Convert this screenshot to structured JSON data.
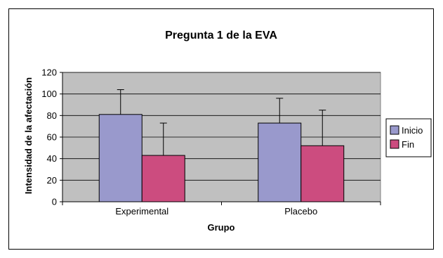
{
  "chart_data": {
    "type": "bar",
    "title": "Pregunta 1 de la EVA",
    "xlabel": "Grupo",
    "ylabel": "Intensidad de la afectación",
    "categories": [
      "Experimental",
      "Placebo"
    ],
    "series": [
      {
        "name": "Inicio",
        "values": [
          81,
          73
        ],
        "error": [
          23,
          23
        ],
        "color": "#9999cc"
      },
      {
        "name": "Fin",
        "values": [
          43,
          52
        ],
        "error": [
          30,
          33
        ],
        "color": "#cc4c7f"
      }
    ],
    "ylim": [
      0,
      120
    ],
    "yticks": [
      0,
      20,
      40,
      60,
      80,
      100,
      120
    ],
    "grid": true,
    "legend_position": "right",
    "plot_background": "#c0c0c0"
  }
}
